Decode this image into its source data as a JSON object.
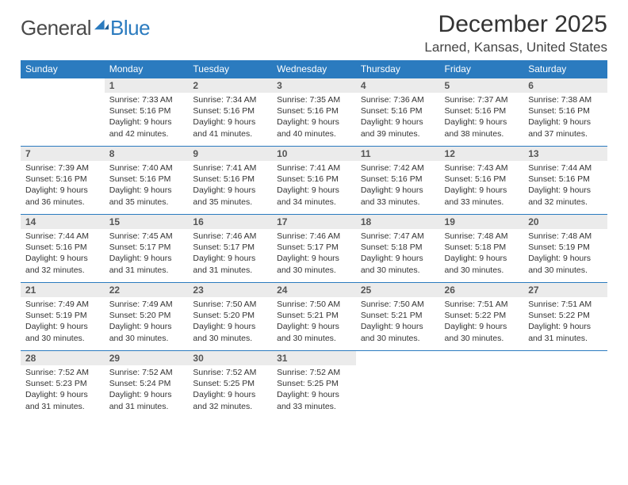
{
  "logo": {
    "text1": "General",
    "text2": "Blue"
  },
  "title": "December 2025",
  "location": "Larned, Kansas, United States",
  "colors": {
    "header_bg": "#2b7bbf",
    "header_fg": "#ffffff",
    "daynum_bg": "#ebebeb",
    "rule": "#2b7bbf"
  },
  "weekdays": [
    "Sunday",
    "Monday",
    "Tuesday",
    "Wednesday",
    "Thursday",
    "Friday",
    "Saturday"
  ],
  "weeks": [
    [
      {
        "n": "",
        "sr": "",
        "ss": "",
        "dl": ""
      },
      {
        "n": "1",
        "sr": "Sunrise: 7:33 AM",
        "ss": "Sunset: 5:16 PM",
        "dl": "Daylight: 9 hours and 42 minutes."
      },
      {
        "n": "2",
        "sr": "Sunrise: 7:34 AM",
        "ss": "Sunset: 5:16 PM",
        "dl": "Daylight: 9 hours and 41 minutes."
      },
      {
        "n": "3",
        "sr": "Sunrise: 7:35 AM",
        "ss": "Sunset: 5:16 PM",
        "dl": "Daylight: 9 hours and 40 minutes."
      },
      {
        "n": "4",
        "sr": "Sunrise: 7:36 AM",
        "ss": "Sunset: 5:16 PM",
        "dl": "Daylight: 9 hours and 39 minutes."
      },
      {
        "n": "5",
        "sr": "Sunrise: 7:37 AM",
        "ss": "Sunset: 5:16 PM",
        "dl": "Daylight: 9 hours and 38 minutes."
      },
      {
        "n": "6",
        "sr": "Sunrise: 7:38 AM",
        "ss": "Sunset: 5:16 PM",
        "dl": "Daylight: 9 hours and 37 minutes."
      }
    ],
    [
      {
        "n": "7",
        "sr": "Sunrise: 7:39 AM",
        "ss": "Sunset: 5:16 PM",
        "dl": "Daylight: 9 hours and 36 minutes."
      },
      {
        "n": "8",
        "sr": "Sunrise: 7:40 AM",
        "ss": "Sunset: 5:16 PM",
        "dl": "Daylight: 9 hours and 35 minutes."
      },
      {
        "n": "9",
        "sr": "Sunrise: 7:41 AM",
        "ss": "Sunset: 5:16 PM",
        "dl": "Daylight: 9 hours and 35 minutes."
      },
      {
        "n": "10",
        "sr": "Sunrise: 7:41 AM",
        "ss": "Sunset: 5:16 PM",
        "dl": "Daylight: 9 hours and 34 minutes."
      },
      {
        "n": "11",
        "sr": "Sunrise: 7:42 AM",
        "ss": "Sunset: 5:16 PM",
        "dl": "Daylight: 9 hours and 33 minutes."
      },
      {
        "n": "12",
        "sr": "Sunrise: 7:43 AM",
        "ss": "Sunset: 5:16 PM",
        "dl": "Daylight: 9 hours and 33 minutes."
      },
      {
        "n": "13",
        "sr": "Sunrise: 7:44 AM",
        "ss": "Sunset: 5:16 PM",
        "dl": "Daylight: 9 hours and 32 minutes."
      }
    ],
    [
      {
        "n": "14",
        "sr": "Sunrise: 7:44 AM",
        "ss": "Sunset: 5:16 PM",
        "dl": "Daylight: 9 hours and 32 minutes."
      },
      {
        "n": "15",
        "sr": "Sunrise: 7:45 AM",
        "ss": "Sunset: 5:17 PM",
        "dl": "Daylight: 9 hours and 31 minutes."
      },
      {
        "n": "16",
        "sr": "Sunrise: 7:46 AM",
        "ss": "Sunset: 5:17 PM",
        "dl": "Daylight: 9 hours and 31 minutes."
      },
      {
        "n": "17",
        "sr": "Sunrise: 7:46 AM",
        "ss": "Sunset: 5:17 PM",
        "dl": "Daylight: 9 hours and 30 minutes."
      },
      {
        "n": "18",
        "sr": "Sunrise: 7:47 AM",
        "ss": "Sunset: 5:18 PM",
        "dl": "Daylight: 9 hours and 30 minutes."
      },
      {
        "n": "19",
        "sr": "Sunrise: 7:48 AM",
        "ss": "Sunset: 5:18 PM",
        "dl": "Daylight: 9 hours and 30 minutes."
      },
      {
        "n": "20",
        "sr": "Sunrise: 7:48 AM",
        "ss": "Sunset: 5:19 PM",
        "dl": "Daylight: 9 hours and 30 minutes."
      }
    ],
    [
      {
        "n": "21",
        "sr": "Sunrise: 7:49 AM",
        "ss": "Sunset: 5:19 PM",
        "dl": "Daylight: 9 hours and 30 minutes."
      },
      {
        "n": "22",
        "sr": "Sunrise: 7:49 AM",
        "ss": "Sunset: 5:20 PM",
        "dl": "Daylight: 9 hours and 30 minutes."
      },
      {
        "n": "23",
        "sr": "Sunrise: 7:50 AM",
        "ss": "Sunset: 5:20 PM",
        "dl": "Daylight: 9 hours and 30 minutes."
      },
      {
        "n": "24",
        "sr": "Sunrise: 7:50 AM",
        "ss": "Sunset: 5:21 PM",
        "dl": "Daylight: 9 hours and 30 minutes."
      },
      {
        "n": "25",
        "sr": "Sunrise: 7:50 AM",
        "ss": "Sunset: 5:21 PM",
        "dl": "Daylight: 9 hours and 30 minutes."
      },
      {
        "n": "26",
        "sr": "Sunrise: 7:51 AM",
        "ss": "Sunset: 5:22 PM",
        "dl": "Daylight: 9 hours and 30 minutes."
      },
      {
        "n": "27",
        "sr": "Sunrise: 7:51 AM",
        "ss": "Sunset: 5:22 PM",
        "dl": "Daylight: 9 hours and 31 minutes."
      }
    ],
    [
      {
        "n": "28",
        "sr": "Sunrise: 7:52 AM",
        "ss": "Sunset: 5:23 PM",
        "dl": "Daylight: 9 hours and 31 minutes."
      },
      {
        "n": "29",
        "sr": "Sunrise: 7:52 AM",
        "ss": "Sunset: 5:24 PM",
        "dl": "Daylight: 9 hours and 31 minutes."
      },
      {
        "n": "30",
        "sr": "Sunrise: 7:52 AM",
        "ss": "Sunset: 5:25 PM",
        "dl": "Daylight: 9 hours and 32 minutes."
      },
      {
        "n": "31",
        "sr": "Sunrise: 7:52 AM",
        "ss": "Sunset: 5:25 PM",
        "dl": "Daylight: 9 hours and 33 minutes."
      },
      {
        "n": "",
        "sr": "",
        "ss": "",
        "dl": ""
      },
      {
        "n": "",
        "sr": "",
        "ss": "",
        "dl": ""
      },
      {
        "n": "",
        "sr": "",
        "ss": "",
        "dl": ""
      }
    ]
  ]
}
